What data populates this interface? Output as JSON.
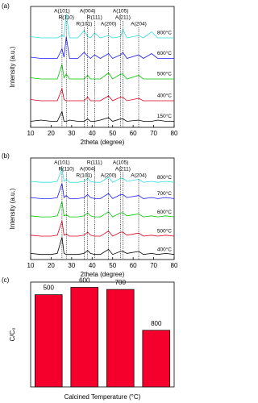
{
  "chart_data": [
    {
      "type": "line",
      "panel_label": "(a)",
      "xlabel": "2theta (degree)",
      "ylabel": "Intensity (a.u.)",
      "xlim": [
        10,
        80
      ],
      "xticks": [
        10,
        20,
        30,
        40,
        50,
        60,
        70,
        80
      ],
      "ylim": [
        0,
        100
      ],
      "x": [
        10,
        15,
        20,
        23,
        25.3,
        26.3,
        27.4,
        29,
        33,
        36.1,
        37.8,
        39.2,
        41.2,
        44,
        48,
        50,
        53.9,
        55,
        57,
        62.7,
        65,
        69,
        72,
        76,
        80
      ],
      "series": [
        {
          "name": "150°C",
          "color": "#000000",
          "values": [
            5,
            6,
            5,
            5,
            13,
            5,
            5,
            6,
            5,
            5,
            7,
            5,
            5,
            6,
            8,
            5,
            7,
            7,
            5,
            6,
            5,
            5,
            6,
            5,
            5
          ]
        },
        {
          "name": "400°C",
          "color": "#e0001b",
          "values": [
            23,
            22,
            22,
            22,
            32,
            23,
            22,
            22,
            22,
            22,
            25,
            22,
            22,
            22,
            26,
            22,
            25,
            25,
            22,
            24,
            22,
            22,
            22,
            22,
            22
          ]
        },
        {
          "name": "500°C",
          "color": "#00c800",
          "values": [
            41,
            40,
            40,
            40,
            52,
            41,
            44,
            40,
            40,
            40,
            43,
            40,
            40,
            40,
            45,
            40,
            44,
            44,
            40,
            43,
            40,
            40,
            40,
            40,
            40
          ]
        },
        {
          "name": "600°C",
          "color": "#1a1aff",
          "values": [
            58,
            57,
            57,
            57,
            65,
            58,
            75,
            57,
            57,
            62,
            59,
            57,
            60,
            57,
            61,
            57,
            60,
            62,
            57,
            60,
            57,
            61,
            57,
            57,
            57
          ]
        },
        {
          "name": "800°C",
          "color": "#33dddd",
          "values": [
            75,
            74,
            74,
            74,
            76,
            75,
            94,
            74,
            74,
            80,
            75,
            74,
            78,
            74,
            76,
            74,
            75,
            81,
            74,
            76,
            74,
            79,
            74,
            74,
            74
          ]
        }
      ],
      "peaks": [
        {
          "label": "A(101)",
          "x": 25.3
        },
        {
          "label": "R(110)",
          "x": 27.4
        },
        {
          "label": "R(101)",
          "x": 36.1
        },
        {
          "label": "A(004)",
          "x": 37.8
        },
        {
          "label": "R(111)",
          "x": 41.2
        },
        {
          "label": "A(200)",
          "x": 48
        },
        {
          "label": "A(105)",
          "x": 53.9
        },
        {
          "label": "A(211)",
          "x": 55
        },
        {
          "label": "A(204)",
          "x": 62.7
        }
      ]
    },
    {
      "type": "line",
      "panel_label": "(b)",
      "xlabel": "2theta (degree)",
      "ylabel": "Intensity (a.u.)",
      "xlim": [
        10,
        80
      ],
      "xticks": [
        10,
        20,
        30,
        40,
        50,
        60,
        70,
        80
      ],
      "ylim": [
        0,
        100
      ],
      "x": [
        10,
        15,
        20,
        23,
        25.3,
        26.3,
        27.4,
        29,
        33,
        36.1,
        37.8,
        39.2,
        41.2,
        44,
        48,
        50,
        53.9,
        55,
        57,
        62.7,
        65,
        69,
        72,
        76,
        80
      ],
      "series": [
        {
          "name": "400°C",
          "color": "#000000",
          "values": [
            6,
            5,
            5,
            6,
            22,
            6,
            5,
            5,
            5,
            6,
            9,
            6,
            5,
            5,
            10,
            5,
            8,
            8,
            6,
            8,
            5,
            6,
            5,
            6,
            5
          ]
        },
        {
          "name": "500°C",
          "color": "#e0001b",
          "values": [
            24,
            23,
            23,
            24,
            38,
            24,
            25,
            23,
            23,
            24,
            27,
            24,
            23,
            23,
            28,
            23,
            27,
            27,
            24,
            26,
            23,
            24,
            23,
            24,
            23
          ]
        },
        {
          "name": "600°C",
          "color": "#00c800",
          "values": [
            43,
            42,
            42,
            43,
            57,
            43,
            44,
            42,
            42,
            43,
            46,
            43,
            42,
            42,
            47,
            42,
            46,
            46,
            43,
            45,
            42,
            43,
            42,
            43,
            42
          ]
        },
        {
          "name": "700°C",
          "color": "#1a1aff",
          "values": [
            61,
            60,
            60,
            61,
            75,
            61,
            63,
            60,
            60,
            61,
            64,
            61,
            60,
            60,
            65,
            60,
            64,
            64,
            61,
            63,
            60,
            61,
            60,
            61,
            60
          ]
        },
        {
          "name": "800°C",
          "color": "#33dddd",
          "values": [
            77,
            76,
            76,
            77,
            90,
            77,
            79,
            76,
            76,
            77,
            80,
            77,
            76,
            76,
            81,
            76,
            80,
            80,
            77,
            79,
            76,
            77,
            76,
            77,
            76
          ]
        }
      ],
      "peaks": [
        {
          "label": "A(101)",
          "x": 25.3
        },
        {
          "label": "R(110)",
          "x": 27.4
        },
        {
          "label": "R(101)",
          "x": 36.1
        },
        {
          "label": "R(111)",
          "x": 41.2
        },
        {
          "label": "A(004)",
          "x": 37.8
        },
        {
          "label": "A(200)",
          "x": 48
        },
        {
          "label": "A(105)",
          "x": 53.9
        },
        {
          "label": "A(211)",
          "x": 55
        },
        {
          "label": "A(204)",
          "x": 62.7
        }
      ]
    },
    {
      "type": "bar",
      "panel_label": "(c)",
      "xlabel": "Calcined Temperature (°C)",
      "ylabel": "C/C₀",
      "categories": [
        "500",
        "600",
        "700",
        "800"
      ],
      "values": [
        0.88,
        0.95,
        0.93,
        0.54
      ],
      "color": "#f5002d",
      "ylim": [
        0,
        1
      ]
    }
  ]
}
